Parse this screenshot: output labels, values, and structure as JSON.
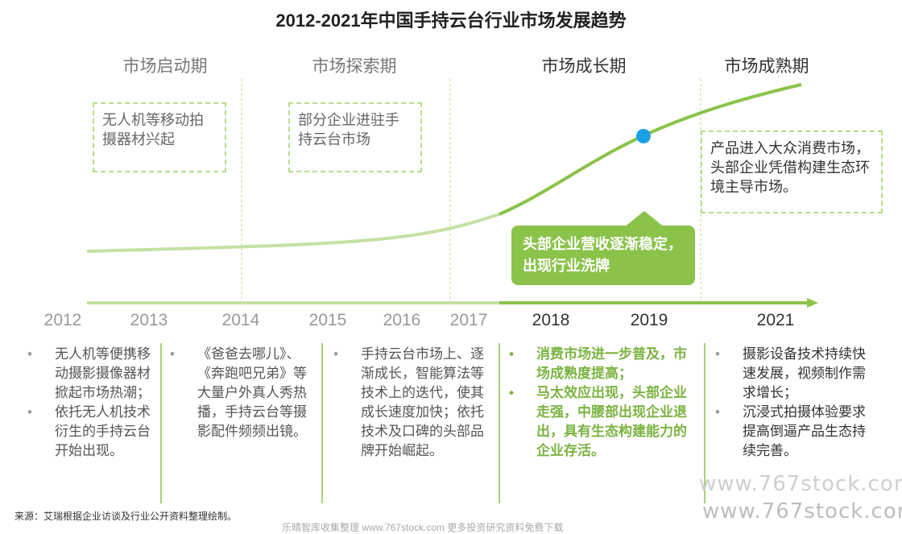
{
  "title": "2012-2021年中国手持云台行业市场发展趋势",
  "phases": [
    "市场启动期",
    "市场探索期",
    "市场成长期",
    "市场成熟期"
  ],
  "notes": {
    "startup": "无人机等移动拍摄器材兴起",
    "explore": "部分企业进驻手持云台市场",
    "mature": "产品进入大众消费市场，头部企业凭借构建生态环境主导市场。",
    "highlight": "头部企业营收逐渐稳定，出现行业洗牌"
  },
  "years": [
    "2012",
    "2013",
    "2014",
    "2015",
    "2016",
    "2017",
    "2018",
    "2019",
    "2021"
  ],
  "columns": [
    {
      "items": [
        "无人机等便携移动摄影摄像器材掀起市场热潮；",
        "依托无人机技术衍生的手持云台开始出现。"
      ]
    },
    {
      "items": [
        "《爸爸去哪儿》、《奔跑吧兄弟》等大量户外真人秀热播，手持云台等摄影配件频频出镜。"
      ]
    },
    {
      "items": [
        "手持云台市场上、逐渐成长，智能算法等技术上的迭代，使其成长速度加快；依托技术及口碑的头部品牌开始崛起。"
      ]
    },
    {
      "items": [
        "消费市场进一步普及，市场成熟度提高；",
        "马太效应出现，头部企业走强，中腰部出现企业退出，具有生态构建能力的企业存活。"
      ]
    },
    {
      "items": [
        "摄影设备技术持续快速发展，视频制作需求增长；",
        "沉浸式拍摄体验要求提高倒逼产品生态持续完善。"
      ]
    }
  ],
  "source": "来源：艾瑞根据企业访谈及行业公开资料整理绘制。",
  "footer": "乐晴智库收集整理 www.767stock.com 更多投资研究资料免费下载",
  "watermark": "www.767stock.com",
  "colors": {
    "accent": "#8bc34a",
    "light": "#c5e1a5",
    "dot": "#1da1e6"
  }
}
